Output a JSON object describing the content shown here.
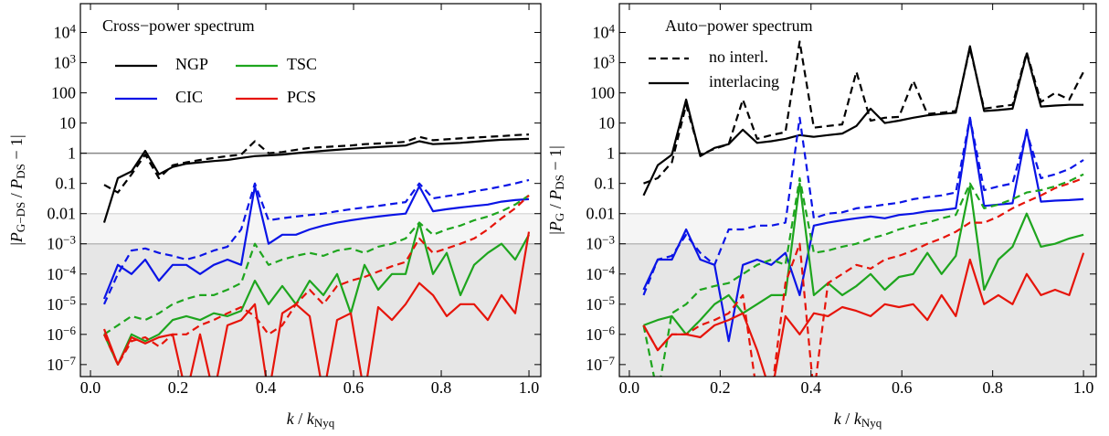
{
  "chart_data": [
    {
      "type": "line",
      "title": "Cross−power spectrum",
      "log_y": true,
      "ylabel": [
        {
          "text": "|"
        },
        {
          "text": "P",
          "italic": true
        },
        {
          "text": "G−DS",
          "sub": true
        },
        {
          "text": " / "
        },
        {
          "text": "P",
          "italic": true
        },
        {
          "text": "DS",
          "sub": true
        },
        {
          "text": " − 1|"
        }
      ],
      "xlabel": [
        {
          "text": "k",
          "italic": true
        },
        {
          "text": " / "
        },
        {
          "text": "k",
          "italic": true
        },
        {
          "text": "Nyq",
          "sub": true
        }
      ],
      "xlim": [
        -0.023,
        1.027
      ],
      "ylim": [
        4e-08,
        90000
      ],
      "xticks": [
        {
          "value": 0,
          "label": "0.0"
        },
        0.2,
        0.4,
        0.6,
        0.8,
        {
          "value": 1,
          "label": "1.0"
        }
      ],
      "yticks": [
        {
          "value": 1e-07,
          "label": "10",
          "exp": "−7"
        },
        {
          "value": 1e-06,
          "label": "10",
          "exp": "−6"
        },
        {
          "value": 1e-05,
          "label": "10",
          "exp": "−5"
        },
        {
          "value": 0.0001,
          "label": "10",
          "exp": "−4"
        },
        {
          "value": 0.001,
          "label": "10",
          "exp": "−3"
        },
        0.01,
        0.1,
        1,
        10,
        100,
        {
          "value": 1000,
          "label": "10",
          "exp": "3"
        },
        {
          "value": 10000,
          "label": "10",
          "exp": "4"
        }
      ],
      "hline": 1,
      "light_shade": [
        0.001,
        0.01
      ],
      "dark_shade_below": 0.001,
      "legend": "scheme",
      "x": [
        0.03125,
        0.0625,
        0.09375,
        0.125,
        0.15625,
        0.1875,
        0.21875,
        0.25,
        0.28125,
        0.3125,
        0.34375,
        0.375,
        0.40625,
        0.4375,
        0.46875,
        0.5,
        0.53125,
        0.5625,
        0.59375,
        0.625,
        0.65625,
        0.6875,
        0.71875,
        0.75,
        0.78125,
        0.8125,
        0.84375,
        0.875,
        0.90625,
        0.9375,
        0.96875,
        1
      ],
      "series": [
        {
          "name": "NGP",
          "color": "#000000",
          "dashed": false,
          "values": [
            0.005,
            0.15,
            0.25,
            1.2,
            0.2,
            0.35,
            0.45,
            0.5,
            0.55,
            0.6,
            0.7,
            0.8,
            0.85,
            0.9,
            1.0,
            1.1,
            1.2,
            1.3,
            1.4,
            1.5,
            1.6,
            1.7,
            1.8,
            2.5,
            2.0,
            2.1,
            2.2,
            2.4,
            2.6,
            2.8,
            2.9,
            3.0
          ]
        },
        {
          "name": "NGP",
          "color": "#000000",
          "dashed": true,
          "values": [
            0.09,
            0.05,
            0.2,
            0.9,
            0.15,
            0.4,
            0.5,
            0.6,
            0.7,
            0.8,
            0.9,
            2.5,
            1.0,
            1.1,
            1.3,
            1.5,
            1.6,
            1.7,
            1.8,
            2.0,
            2.1,
            2.2,
            2.4,
            3.5,
            2.7,
            2.9,
            3.1,
            3.3,
            3.5,
            3.7,
            4.0,
            4.2
          ]
        },
        {
          "name": "CIC",
          "color": "#0a14e6",
          "dashed": false,
          "values": [
            1.5e-05,
            0.0002,
            0.0001,
            0.0003,
            6e-05,
            0.0002,
            0.0002,
            0.0001,
            0.0002,
            0.0003,
            0.0002,
            0.08,
            0.001,
            0.002,
            0.002,
            0.003,
            0.004,
            0.005,
            0.006,
            0.007,
            0.008,
            0.009,
            0.01,
            0.08,
            0.012,
            0.014,
            0.016,
            0.018,
            0.02,
            0.025,
            0.028,
            0.03
          ]
        },
        {
          "name": "CIC",
          "color": "#0a14e6",
          "dashed": true,
          "values": [
            1e-05,
            0.0001,
            0.0006,
            0.0007,
            0.0005,
            0.0004,
            0.0003,
            0.0004,
            0.0006,
            0.0008,
            0.003,
            0.1,
            0.006,
            0.007,
            0.008,
            0.009,
            0.01,
            0.012,
            0.014,
            0.016,
            0.018,
            0.021,
            0.024,
            0.1,
            0.032,
            0.038,
            0.044,
            0.055,
            0.065,
            0.08,
            0.1,
            0.13
          ]
        },
        {
          "name": "TSC",
          "color": "#1ea51e",
          "dashed": false,
          "values": [
            1e-06,
            1e-07,
            1e-06,
            6e-07,
            1e-06,
            3e-06,
            4e-06,
            3e-06,
            5e-06,
            4e-06,
            6e-06,
            6e-05,
            1e-05,
            4e-05,
            1e-05,
            6e-05,
            2e-05,
            0.0001,
            5e-06,
            0.0002,
            3e-05,
            0.0001,
            0.0001,
            0.005,
            0.0001,
            0.0005,
            2e-05,
            0.0002,
            0.0005,
            0.001,
            0.0003,
            0.002
          ]
        },
        {
          "name": "TSC",
          "color": "#1ea51e",
          "dashed": true,
          "values": [
            1e-06,
            2e-06,
            4e-06,
            3e-06,
            5e-06,
            1e-05,
            1.5e-05,
            2e-05,
            2e-05,
            3e-05,
            5e-05,
            0.001,
            0.0002,
            0.0003,
            0.0004,
            0.0005,
            0.0004,
            0.0006,
            0.0007,
            0.0005,
            0.0008,
            0.001,
            0.0015,
            0.005,
            0.002,
            0.003,
            0.004,
            0.006,
            0.008,
            0.012,
            0.02,
            0.04
          ]
        },
        {
          "name": "PCS",
          "color": "#e6140a",
          "dashed": false,
          "values": [
            1.5e-06,
            1e-07,
            8e-07,
            5e-07,
            8e-07,
            1e-06,
            1e-08,
            1e-06,
            1e-08,
            2e-06,
            3e-06,
            1e-05,
            1e-08,
            5e-06,
            1e-05,
            4e-06,
            1e-08,
            3e-06,
            5e-06,
            1e-08,
            8e-06,
            3e-06,
            1e-05,
            5e-05,
            2e-05,
            4e-06,
            1e-05,
            1e-05,
            3e-06,
            2e-05,
            5e-06,
            0.0025
          ]
        },
        {
          "name": "PCS",
          "color": "#e6140a",
          "dashed": true,
          "values": [
            1e-06,
            1e-07,
            6e-07,
            8e-07,
            4e-07,
            1e-06,
            1e-06,
            2e-06,
            3e-06,
            5e-06,
            8e-06,
            4e-06,
            1e-06,
            2e-06,
            1e-05,
            3e-05,
            1e-05,
            4e-05,
            6e-05,
            8e-05,
            0.00012,
            0.00018,
            0.00025,
            0.0015,
            0.0005,
            0.0007,
            0.001,
            0.0015,
            0.003,
            0.007,
            0.015,
            0.04
          ]
        }
      ]
    },
    {
      "type": "line",
      "title": "Auto−power spectrum",
      "log_y": true,
      "ylabel": [
        {
          "text": "|"
        },
        {
          "text": "P",
          "italic": true
        },
        {
          "text": "G",
          "sub": true
        },
        {
          "text": " / "
        },
        {
          "text": "P",
          "italic": true
        },
        {
          "text": "DS",
          "sub": true
        },
        {
          "text": " − 1|"
        }
      ],
      "xlabel": [
        {
          "text": "k",
          "italic": true
        },
        {
          "text": " / "
        },
        {
          "text": "k",
          "italic": true
        },
        {
          "text": "Nyq",
          "sub": true
        }
      ],
      "xlim": [
        -0.022,
        1.028
      ],
      "ylim": [
        4e-08,
        90000
      ],
      "xticks": [
        {
          "value": 0,
          "label": "0.0"
        },
        0.2,
        0.4,
        0.6,
        0.8,
        {
          "value": 1,
          "label": "1.0"
        }
      ],
      "yticks": [
        {
          "value": 1e-07,
          "label": "10",
          "exp": "−7"
        },
        {
          "value": 1e-06,
          "label": "10",
          "exp": "−6"
        },
        {
          "value": 1e-05,
          "label": "10",
          "exp": "−5"
        },
        {
          "value": 0.0001,
          "label": "10",
          "exp": "−4"
        },
        {
          "value": 0.001,
          "label": "10",
          "exp": "−3"
        },
        0.01,
        0.1,
        1,
        10,
        100,
        {
          "value": 1000,
          "label": "10",
          "exp": "3"
        },
        {
          "value": 10000,
          "label": "10",
          "exp": "4"
        }
      ],
      "hline": 1,
      "light_shade": [
        0.001,
        0.01
      ],
      "dark_shade_below": 0.001,
      "legend": "style",
      "styles": [
        {
          "label": "no interl.",
          "dashed": true
        },
        {
          "label": "interlacing",
          "dashed": false
        }
      ],
      "x": [
        0.03125,
        0.0625,
        0.09375,
        0.125,
        0.15625,
        0.1875,
        0.21875,
        0.25,
        0.28125,
        0.3125,
        0.34375,
        0.375,
        0.40625,
        0.4375,
        0.46875,
        0.5,
        0.53125,
        0.5625,
        0.59375,
        0.625,
        0.65625,
        0.6875,
        0.71875,
        0.75,
        0.78125,
        0.8125,
        0.84375,
        0.875,
        0.90625,
        0.9375,
        0.96875,
        1
      ],
      "series": [
        {
          "color": "#000000",
          "dashed": false,
          "values": [
            0.04,
            0.4,
            0.9,
            60,
            0.8,
            1.5,
            2,
            6,
            2.2,
            2.5,
            3,
            4,
            3.5,
            4,
            4.5,
            8,
            30,
            10,
            12,
            15,
            18,
            20,
            22,
            3500,
            25,
            27,
            30,
            2000,
            35,
            38,
            40,
            40
          ]
        },
        {
          "color": "#000000",
          "dashed": true,
          "values": [
            0.1,
            0.15,
            0.5,
            40,
            0.9,
            1.4,
            2,
            60,
            3,
            4,
            5,
            5000,
            7,
            8,
            9,
            500,
            12,
            15,
            16,
            250,
            20,
            22,
            25,
            3000,
            30,
            35,
            40,
            2200,
            50,
            100,
            60,
            500
          ]
        },
        {
          "color": "#0a14e6",
          "dashed": false,
          "values": [
            3e-05,
            0.0003,
            0.0003,
            0.003,
            0.0003,
            0.0002,
            6e-07,
            0.0002,
            0.0003,
            0.0002,
            0.0005,
            2e-05,
            0.004,
            0.005,
            0.006,
            0.007,
            0.008,
            0.007,
            0.009,
            0.01,
            0.012,
            0.013,
            0.015,
            15,
            0.018,
            0.02,
            0.022,
            6,
            0.025,
            0.027,
            0.028,
            0.03
          ]
        },
        {
          "color": "#0a14e6",
          "dashed": true,
          "values": [
            2e-05,
            0.0003,
            0.0004,
            0.002,
            0.0005,
            0.0002,
            0.003,
            0.003,
            0.004,
            0.004,
            0.005,
            15,
            0.007,
            0.01,
            0.011,
            0.015,
            0.017,
            0.02,
            0.023,
            0.03,
            0.035,
            0.04,
            0.05,
            15,
            0.06,
            0.08,
            0.1,
            5,
            0.15,
            0.2,
            0.3,
            0.6
          ]
        },
        {
          "color": "#1ea51e",
          "dashed": false,
          "values": [
            2e-06,
            3e-06,
            4e-06,
            1e-06,
            3e-06,
            1e-05,
            2e-05,
            5e-06,
            1e-05,
            2e-05,
            2e-05,
            0.1,
            2e-05,
            5e-05,
            2e-05,
            4e-05,
            0.0001,
            3e-05,
            8e-05,
            0.0001,
            0.0005,
            0.0001,
            0.0004,
            0.08,
            3e-05,
            0.0003,
            0.0008,
            0.01,
            0.0008,
            0.001,
            0.0015,
            0.002
          ]
        },
        {
          "color": "#1ea51e",
          "dashed": true,
          "values": [
            2e-06,
            1e-08,
            5e-06,
            1e-05,
            3e-05,
            4e-05,
            5e-05,
            0.0001,
            0.0002,
            0.0003,
            0.0002,
            0.15,
            0.0005,
            0.0006,
            0.0008,
            0.001,
            0.0015,
            0.002,
            0.003,
            0.004,
            0.005,
            0.007,
            0.009,
            0.1,
            0.015,
            0.02,
            0.03,
            0.05,
            0.06,
            0.08,
            0.12,
            0.2
          ]
        },
        {
          "color": "#e6140a",
          "dashed": false,
          "values": [
            2e-06,
            3e-07,
            1e-06,
            1e-06,
            8e-07,
            2e-06,
            3e-06,
            5e-06,
            3e-07,
            1e-08,
            4e-06,
            1e-06,
            5e-06,
            4e-06,
            8e-06,
            6e-06,
            4e-06,
            1e-05,
            8e-06,
            1e-05,
            3e-06,
            2e-05,
            4e-06,
            0.0003,
            1e-05,
            2e-05,
            1e-05,
            0.0001,
            2e-05,
            3e-05,
            2e-05,
            0.0005
          ]
        },
        {
          "color": "#e6140a",
          "dashed": true,
          "values": [
            2e-06,
            3e-07,
            1e-06,
            1e-06,
            2e-06,
            3e-06,
            5e-06,
            2e-05,
            1e-08,
            1e-08,
            5e-05,
            0.001,
            1e-08,
            5e-05,
            0.0001,
            0.0002,
            0.00015,
            0.0003,
            0.0004,
            0.0006,
            0.001,
            0.0015,
            0.0025,
            0.005,
            0.005,
            0.008,
            0.015,
            0.025,
            0.04,
            0.07,
            0.1,
            0.15
          ]
        }
      ]
    }
  ]
}
